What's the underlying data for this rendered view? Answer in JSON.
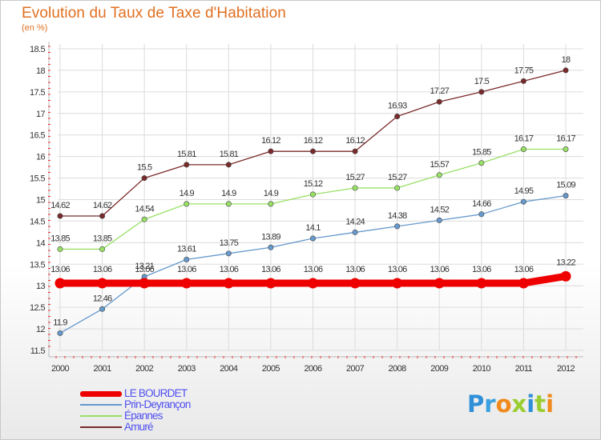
{
  "header": {
    "title": "Evolution du Taux de Taxe d'Habitation",
    "subtitle": "(en %)"
  },
  "brand": {
    "letters": [
      "P",
      "r",
      "o",
      "x",
      "i",
      "t",
      "i"
    ],
    "colors": [
      "#2f8fd8",
      "#3aa0e0",
      "#f08a1c",
      "#9acd32",
      "#2f8fd8",
      "#9acd32",
      "#f08a1c"
    ]
  },
  "chart_data": {
    "type": "line",
    "categories": [
      "2000",
      "2001",
      "2002",
      "2003",
      "2004",
      "2005",
      "2006",
      "2007",
      "2008",
      "2009",
      "2010",
      "2011",
      "2012"
    ],
    "ylim": [
      11.5,
      18.5
    ],
    "yticks": [
      "11.5",
      "12",
      "12.5",
      "13",
      "13.5",
      "14",
      "14.5",
      "15",
      "15.5",
      "16",
      "16.5",
      "17",
      "17.5",
      "18",
      "18.5"
    ],
    "grid": true,
    "legend_position": "bottom-left",
    "series": [
      {
        "name": "LE BOURDET",
        "color": "#ee0000",
        "values": [
          13.06,
          13.06,
          13.06,
          13.06,
          13.06,
          13.06,
          13.06,
          13.06,
          13.06,
          13.06,
          13.06,
          13.06,
          13.22
        ],
        "labels": [
          "13.06",
          "13.06",
          "13.06",
          "13.06",
          "13.06",
          "13.06",
          "13.06",
          "13.06",
          "13.06",
          "13.06",
          "13.06",
          "13.06",
          "13.22"
        ]
      },
      {
        "name": "Prin-Deyrançon",
        "color": "#6699cc",
        "values": [
          11.9,
          12.46,
          13.21,
          13.61,
          13.75,
          13.89,
          14.1,
          14.24,
          14.38,
          14.52,
          14.66,
          14.95,
          15.09
        ],
        "labels": [
          "11.9",
          "12.46",
          "13.21",
          "13.61",
          "13.75",
          "13.89",
          "14.1",
          "14.24",
          "14.38",
          "14.52",
          "14.66",
          "14.95",
          "15.09"
        ]
      },
      {
        "name": "Épannes",
        "color": "#99e066",
        "values": [
          13.85,
          13.85,
          14.54,
          14.9,
          14.9,
          14.9,
          15.12,
          15.27,
          15.27,
          15.57,
          15.85,
          16.17,
          16.17
        ],
        "labels": [
          "13.85",
          "13.85",
          "14.54",
          "14.9",
          "14.9",
          "14.9",
          "15.12",
          "15.27",
          "15.27",
          "15.57",
          "15.85",
          "16.17",
          "16.17"
        ]
      },
      {
        "name": "Amuré",
        "color": "#7a2a2a",
        "values": [
          14.62,
          14.62,
          15.5,
          15.81,
          15.81,
          16.12,
          16.12,
          16.12,
          16.93,
          17.27,
          17.5,
          17.75,
          18
        ],
        "labels": [
          "14.62",
          "14.62",
          "15.5",
          "15.81",
          "15.81",
          "16.12",
          "16.12",
          "16.12",
          "16.93",
          "17.27",
          "17.5",
          "17.75",
          "18"
        ]
      }
    ]
  }
}
